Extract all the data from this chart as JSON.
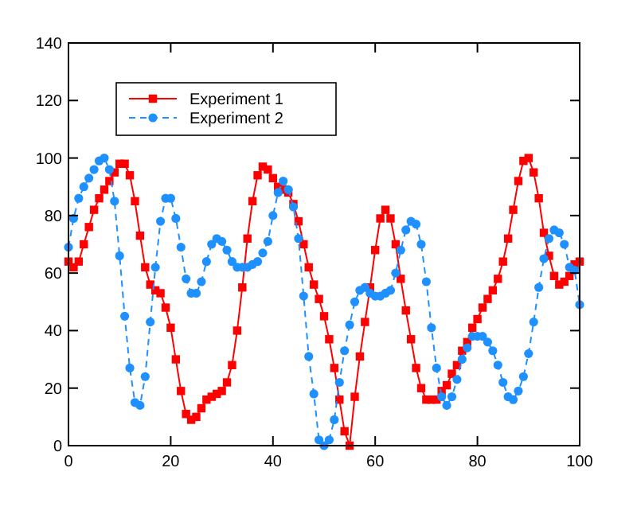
{
  "chart_data": {
    "type": "line",
    "xlim": [
      0,
      100
    ],
    "ylim": [
      0,
      140
    ],
    "xticks": [
      0,
      20,
      40,
      60,
      80,
      100
    ],
    "yticks": [
      0,
      20,
      40,
      60,
      80,
      100,
      120,
      140
    ],
    "grid": false,
    "legend": "top left",
    "x": [
      0,
      1,
      2,
      3,
      4,
      5,
      6,
      7,
      8,
      9,
      10,
      11,
      12,
      13,
      14,
      15,
      16,
      17,
      18,
      19,
      20,
      21,
      22,
      23,
      24,
      25,
      26,
      27,
      28,
      29,
      30,
      31,
      32,
      33,
      34,
      35,
      36,
      37,
      38,
      39,
      40,
      41,
      42,
      43,
      44,
      45,
      46,
      47,
      48,
      49,
      50,
      51,
      52,
      53,
      54,
      55,
      56,
      57,
      58,
      59,
      60,
      61,
      62,
      63,
      64,
      65,
      66,
      67,
      68,
      69,
      70,
      71,
      72,
      73,
      74,
      75,
      76,
      77,
      78,
      79,
      80,
      81,
      82,
      83,
      84,
      85,
      86,
      87,
      88,
      89,
      90,
      91,
      92,
      93,
      94,
      95,
      96,
      97,
      98,
      99,
      100
    ],
    "series": [
      {
        "name": "Experiment 1",
        "color": "#ff0000",
        "marker": "square",
        "line_style": "solid",
        "values": [
          64,
          62,
          64,
          70,
          76,
          82,
          86,
          89,
          92,
          95,
          98,
          98,
          94,
          85,
          73,
          62,
          56,
          54,
          53,
          48,
          41,
          30,
          19,
          11,
          9,
          10,
          13,
          16,
          17,
          18,
          19,
          22,
          28,
          40,
          55,
          72,
          85,
          94,
          97,
          96,
          93,
          90,
          89,
          88,
          84,
          78,
          70,
          62,
          56,
          51,
          45,
          37,
          27,
          16,
          5,
          0,
          17,
          31,
          43,
          55,
          68,
          79,
          82,
          79,
          70,
          58,
          47,
          37,
          27,
          20,
          16,
          16,
          16,
          19,
          21,
          25,
          28,
          33,
          36,
          41,
          44,
          48,
          51,
          54,
          58,
          64,
          72,
          82,
          92,
          99,
          100,
          95,
          86,
          74,
          66,
          59,
          56,
          57,
          59,
          63,
          64
        ]
      },
      {
        "name": "Experiment 2",
        "color": "#1e90ff",
        "marker": "circle",
        "line_style": "dashed",
        "values": [
          69,
          79,
          86,
          90,
          93,
          96,
          99,
          100,
          96,
          85,
          66,
          45,
          27,
          15,
          14,
          24,
          43,
          62,
          78,
          86,
          86,
          79,
          69,
          58,
          53,
          53,
          57,
          64,
          70,
          72,
          71,
          68,
          64,
          62,
          62,
          62,
          63,
          64,
          67,
          71,
          80,
          88,
          92,
          89,
          83,
          72,
          52,
          31,
          18,
          2,
          0,
          2,
          9,
          22,
          33,
          42,
          50,
          54,
          55,
          53,
          52,
          52,
          53,
          54,
          60,
          68,
          75,
          78,
          77,
          70,
          57,
          41,
          27,
          17,
          14,
          17,
          23,
          30,
          34,
          38,
          38,
          38,
          36,
          33,
          28,
          22,
          17,
          16,
          19,
          24,
          32,
          43,
          55,
          65,
          72,
          75,
          74,
          70,
          62,
          61,
          49
        ]
      }
    ]
  }
}
